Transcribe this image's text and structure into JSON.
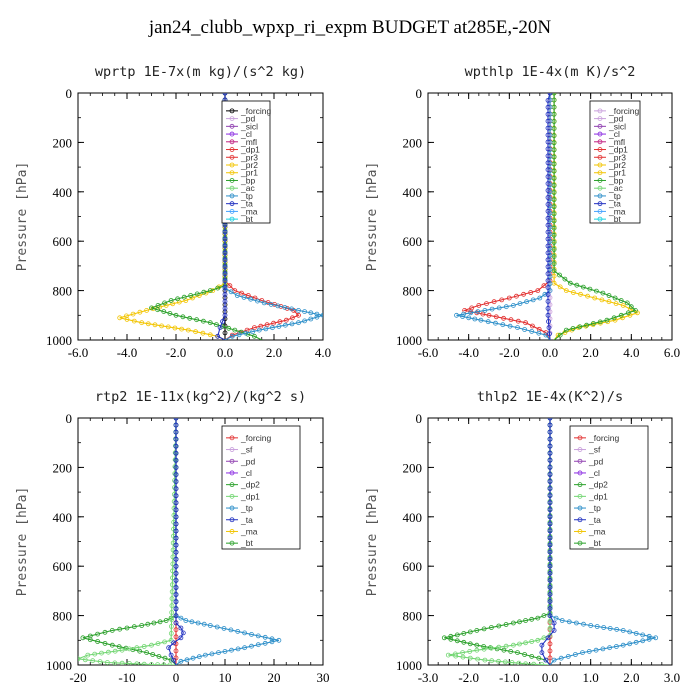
{
  "figure_title": "jan24_clubb_wpxp_ri_expm  BUDGET at285E,-20N",
  "chart_data": [
    {
      "type": "line",
      "title": "wprtp  1E-7x(m kg)/(s^2 kg)",
      "ylabel": "Pressure [hPa]",
      "xlim": [
        -6,
        4
      ],
      "ylim": [
        1000,
        0
      ],
      "xticks": [
        "-6.0",
        "-4.0",
        "-2.0",
        "0.0",
        "2.0",
        "4.0"
      ],
      "yticks": [
        "0",
        "200",
        "400",
        "600",
        "800",
        "1000"
      ],
      "legend": [
        "_forcing",
        "_pd",
        "_sicl",
        "_cl",
        "_mfl",
        "_dp1",
        "_pr3",
        "_pr2",
        "_pr1",
        "_bp",
        "_ac",
        "_tp",
        "_ta",
        "_ma",
        "_bt"
      ],
      "series": [
        {
          "name": "_forcing",
          "color": "#000000",
          "x": [
            0.0,
            0.0
          ],
          "y": [
            0,
            1000
          ]
        },
        {
          "name": "_pr3",
          "color": "#e23030",
          "x": [
            0.0,
            0.0,
            0.4,
            1.5,
            2.8,
            3.0,
            2.5,
            1.2,
            0.3,
            0.0
          ],
          "y": [
            0,
            760,
            800,
            840,
            880,
            900,
            920,
            950,
            980,
            1000
          ]
        },
        {
          "name": "_pr2",
          "color": "#f2c400",
          "x": [
            0.0,
            0.0,
            -0.5,
            -1.6,
            -3.2,
            -4.3,
            -3.4,
            -1.5,
            -0.3,
            0.0
          ],
          "y": [
            0,
            770,
            800,
            840,
            880,
            910,
            930,
            960,
            985,
            1000
          ]
        },
        {
          "name": "_bp",
          "color": "#2aa02a",
          "x": [
            0.0,
            0.0,
            -0.6,
            -2.2,
            -3.0,
            -2.0,
            -0.6,
            0.4,
            1.2,
            1.5
          ],
          "y": [
            0,
            780,
            800,
            840,
            870,
            900,
            930,
            960,
            985,
            1000
          ]
        },
        {
          "name": "_tp",
          "color": "#2d8fc9",
          "x": [
            0.0,
            0.0,
            0.5,
            1.6,
            3.0,
            4.0,
            3.0,
            1.4,
            0.3,
            0.0
          ],
          "y": [
            0,
            790,
            820,
            850,
            880,
            900,
            930,
            960,
            985,
            1000
          ]
        },
        {
          "name": "_ta",
          "color": "#2030c0",
          "x": [
            0.0,
            0.0,
            -0.2,
            -0.3,
            0.0
          ],
          "y": [
            0,
            900,
            950,
            985,
            1000
          ]
        }
      ]
    },
    {
      "type": "line",
      "title": "wpthlp  1E-4x(m K)/s^2",
      "ylabel": "Pressure [hPa]",
      "xlim": [
        -6,
        6
      ],
      "ylim": [
        1000,
        0
      ],
      "xticks": [
        "-6.0",
        "-4.0",
        "-2.0",
        "0.0",
        "2.0",
        "4.0",
        "6.0"
      ],
      "yticks": [
        "0",
        "200",
        "400",
        "600",
        "800",
        "1000"
      ],
      "legend": [
        "_forcing",
        "_pd",
        "_sicl",
        "_cl",
        "_mfl",
        "_dp1",
        "_pr3",
        "_pr2",
        "_pr1",
        "_bp",
        "_ac",
        "_tp",
        "_ta",
        "_ma",
        "_bt"
      ],
      "series": [
        {
          "name": "_forcing",
          "color": "#c9a0dc",
          "x": [
            0.0,
            0.0
          ],
          "y": [
            0,
            1000
          ]
        },
        {
          "name": "_pr3",
          "color": "#e23030",
          "x": [
            0.0,
            0.0,
            -0.6,
            -2.0,
            -3.5,
            -4.2,
            -3.0,
            -1.2,
            -0.2,
            0.0
          ],
          "y": [
            0,
            760,
            800,
            830,
            860,
            880,
            900,
            930,
            970,
            1000
          ]
        },
        {
          "name": "_pr2",
          "color": "#f2c400",
          "x": [
            0.2,
            0.2,
            0.8,
            2.2,
            3.6,
            4.3,
            3.2,
            1.4,
            0.4,
            0.2
          ],
          "y": [
            0,
            770,
            800,
            830,
            860,
            890,
            920,
            950,
            980,
            1000
          ]
        },
        {
          "name": "_bp",
          "color": "#2aa02a",
          "x": [
            0.2,
            0.2,
            1.0,
            2.6,
            3.8,
            4.2,
            2.8,
            0.8,
            0.2
          ],
          "y": [
            0,
            720,
            770,
            810,
            850,
            880,
            920,
            960,
            1000
          ]
        },
        {
          "name": "_tp",
          "color": "#2d8fc9",
          "x": [
            0.0,
            0.0,
            -0.5,
            -1.8,
            -3.2,
            -4.6,
            -3.4,
            -1.6,
            -0.2,
            0.0
          ],
          "y": [
            0,
            800,
            830,
            860,
            880,
            900,
            920,
            950,
            980,
            1000
          ]
        },
        {
          "name": "_ta",
          "color": "#2030c0",
          "x": [
            0.0,
            -0.1,
            -0.1,
            0.0
          ],
          "y": [
            0,
            30,
            900,
            1000
          ]
        }
      ]
    },
    {
      "type": "line",
      "title": "rtp2  1E-11x(kg^2)/(kg^2 s)",
      "ylabel": "Pressure [hPa]",
      "xlim": [
        -20,
        30
      ],
      "ylim": [
        1000,
        0
      ],
      "xticks": [
        "-20",
        "-10",
        "0",
        "10",
        "20",
        "30"
      ],
      "yticks": [
        "0",
        "200",
        "400",
        "600",
        "800",
        "1000"
      ],
      "legend": [
        "_forcing",
        "_sf",
        "_pd",
        "_cl",
        "_dp2",
        "_dp1",
        "_tp",
        "_ta",
        "_ma",
        "_bt"
      ],
      "series": [
        {
          "name": "_forcing",
          "color": "#e23030",
          "x": [
            0.0,
            0.0
          ],
          "y": [
            0,
            1000
          ]
        },
        {
          "name": "_dp2",
          "color": "#2aa02a",
          "x": [
            0.0,
            0.0,
            -2.0,
            -7.0,
            -13.0,
            -19.0,
            -13.0,
            -6.0,
            -1.0,
            0.0
          ],
          "y": [
            0,
            800,
            820,
            840,
            860,
            890,
            920,
            950,
            980,
            1000
          ]
        },
        {
          "name": "_dp1",
          "color": "#72d672",
          "x": [
            0.0,
            -1.0,
            -5.0,
            -11.0,
            -18.0,
            -20.0,
            -14.0,
            -5.0,
            0.0
          ],
          "y": [
            0,
            900,
            920,
            940,
            960,
            975,
            990,
            998,
            1000
          ]
        },
        {
          "name": "_tp",
          "color": "#2d8fc9",
          "x": [
            0.0,
            0.0,
            2.0,
            7.0,
            14.0,
            21.0,
            14.0,
            6.0,
            1.0,
            0.0
          ],
          "y": [
            0,
            800,
            820,
            840,
            870,
            900,
            930,
            960,
            985,
            1000
          ]
        },
        {
          "name": "_ta",
          "color": "#2030c0",
          "x": [
            0.0,
            0.0,
            1.0,
            1.5,
            1.0,
            -0.5,
            -1.5,
            -1.0,
            0.0
          ],
          "y": [
            0,
            830,
            850,
            870,
            890,
            910,
            930,
            960,
            1000
          ]
        }
      ]
    },
    {
      "type": "line",
      "title": "thlp2  1E-4x(K^2)/s",
      "ylabel": "Pressure [hPa]",
      "xlim": [
        -3,
        3
      ],
      "ylim": [
        1000,
        0
      ],
      "xticks": [
        "-3.0",
        "-2.0",
        "-1.0",
        "0.0",
        "1.0",
        "2.0",
        "3.0"
      ],
      "yticks": [
        "0",
        "200",
        "400",
        "600",
        "800",
        "1000"
      ],
      "legend": [
        "_forcing",
        "_sf",
        "_pd",
        "_cl",
        "_dp2",
        "_dp1",
        "_tp",
        "_ta",
        "_ma",
        "_bt"
      ],
      "series": [
        {
          "name": "_forcing",
          "color": "#e23030",
          "x": [
            0.0,
            0.0
          ],
          "y": [
            0,
            1000
          ]
        },
        {
          "name": "_dp2",
          "color": "#2aa02a",
          "x": [
            0.0,
            0.0,
            -0.3,
            -0.9,
            -1.8,
            -2.6,
            -1.8,
            -0.8,
            -0.1,
            0.0
          ],
          "y": [
            0,
            790,
            810,
            830,
            860,
            890,
            920,
            950,
            980,
            1000
          ]
        },
        {
          "name": "_dp1",
          "color": "#72d672",
          "x": [
            0.0,
            0.0,
            -0.3,
            -0.9,
            -1.8,
            -2.5,
            -1.6,
            -0.6,
            0.0
          ],
          "y": [
            0,
            880,
            900,
            920,
            940,
            960,
            980,
            995,
            1000
          ]
        },
        {
          "name": "_tp",
          "color": "#2d8fc9",
          "x": [
            0.0,
            0.0,
            0.3,
            1.0,
            1.8,
            2.6,
            1.8,
            0.8,
            0.1,
            0.0
          ],
          "y": [
            0,
            800,
            820,
            840,
            860,
            890,
            920,
            950,
            980,
            1000
          ]
        },
        {
          "name": "_ta",
          "color": "#2030c0",
          "x": [
            0.0,
            0.0,
            0.1,
            0.1,
            -0.05,
            -0.2,
            -0.2,
            -0.1,
            0.0
          ],
          "y": [
            0,
            800,
            830,
            860,
            890,
            920,
            950,
            980,
            1000
          ]
        }
      ]
    }
  ]
}
